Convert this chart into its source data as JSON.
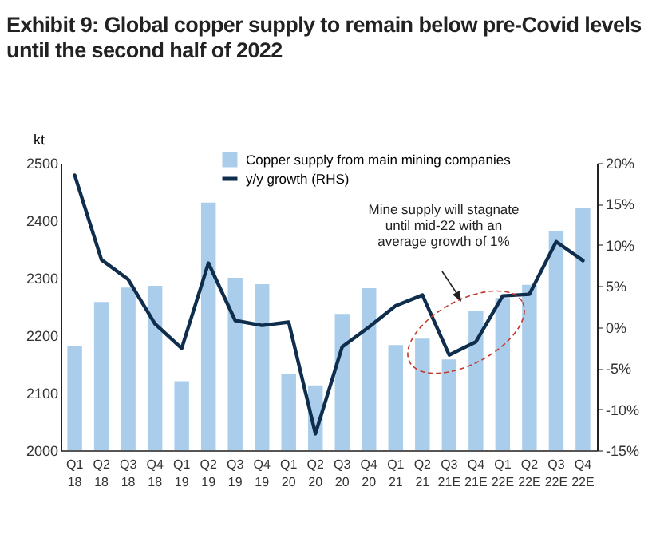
{
  "chart_data": {
    "type": "bar",
    "title": "Exhibit 9: Global copper supply to remain below pre-Covid levels until the second half of 2022",
    "ylabel": "kt",
    "categories": [
      "Q1 18",
      "Q2 18",
      "Q3 18",
      "Q4 18",
      "Q1 19",
      "Q2 19",
      "Q3 19",
      "Q4 19",
      "Q1 20",
      "Q2 20",
      "Q3 20",
      "Q4 20",
      "Q1 21",
      "Q2 21",
      "Q3 21E",
      "Q4 21E",
      "Q1 22E",
      "Q2 22E",
      "Q3 22E",
      "Q4 22E"
    ],
    "series": [
      {
        "name": "Copper supply from main mining companies",
        "color": "#a9cdeb",
        "values": [
          2181,
          2258,
          2283,
          2286,
          2120,
          2431,
          2300,
          2289,
          2132,
          2113,
          2237,
          2282,
          2183,
          2194,
          2158,
          2242,
          2265,
          2288,
          2381,
          2421
        ]
      },
      {
        "name": "y/y growth (RHS)",
        "type": "line",
        "axis": "y2",
        "color": "#0f2d4c",
        "values": [
          18.5,
          8.2,
          5.8,
          0.4,
          -2.6,
          7.8,
          0.8,
          0.2,
          0.6,
          -13.0,
          -2.4,
          0.0,
          2.6,
          3.9,
          -3.4,
          -1.8,
          3.8,
          4.0,
          10.4,
          8.1
        ]
      }
    ],
    "ylim": [
      2000,
      2500
    ],
    "yticks": [
      2000,
      2100,
      2200,
      2300,
      2400,
      2500
    ],
    "y2lim": [
      -15,
      20
    ],
    "y2ticks": [
      {
        "value": -15,
        "label": "-15%"
      },
      {
        "value": -10,
        "label": "-10%"
      },
      {
        "value": -5,
        "label": "-5%"
      },
      {
        "value": 0,
        "label": "0%"
      },
      {
        "value": 5,
        "label": "5%"
      },
      {
        "value": 10,
        "label": "10%"
      },
      {
        "value": 15,
        "label": "15%"
      },
      {
        "value": 20,
        "label": "20%"
      }
    ],
    "annotations": [
      "Mine supply will stagnate until mid-22 with an average growth of 1%"
    ],
    "grid": false,
    "legend": "top"
  }
}
